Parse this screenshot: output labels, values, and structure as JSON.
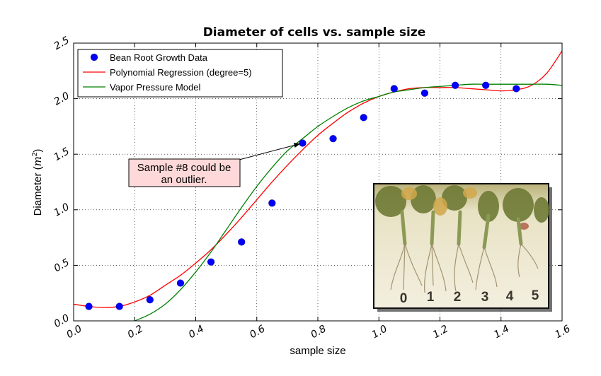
{
  "chart_data": {
    "type": "scatter",
    "title": "Diameter of cells vs. sample size",
    "xlabel": "sample size",
    "ylabel_text": "Diameter (",
    "ylabel_math": "m",
    "ylabel_sup": "2",
    "ylabel_close": ")",
    "xlim": [
      0.0,
      1.6
    ],
    "ylim": [
      0.0,
      2.5
    ],
    "grid": true,
    "legend_position": "top-left",
    "x_ticks": [
      "0.0",
      "0.2",
      "0.4",
      "0.6",
      "0.8",
      "1.0",
      "1.2",
      "1.4",
      "1.6"
    ],
    "y_ticks": [
      "0.0",
      "0.5",
      "1.0",
      "1.5",
      "2.0",
      "2.5"
    ],
    "series": [
      {
        "name": "Bean Root Growth Data",
        "kind": "points",
        "color": "#0000ff",
        "x": [
          0.05,
          0.15,
          0.25,
          0.35,
          0.45,
          0.55,
          0.65,
          0.75,
          0.85,
          0.95,
          1.05,
          1.15,
          1.25,
          1.35,
          1.45
        ],
        "y": [
          0.13,
          0.13,
          0.19,
          0.34,
          0.53,
          0.71,
          1.06,
          1.6,
          1.64,
          1.83,
          2.09,
          2.05,
          2.12,
          2.12,
          2.09
        ]
      },
      {
        "name": "Polynomial Regression (degree=5)",
        "kind": "line",
        "color": "#ff0000",
        "x": [
          0.0,
          0.05,
          0.1,
          0.15,
          0.2,
          0.25,
          0.3,
          0.35,
          0.4,
          0.45,
          0.5,
          0.55,
          0.6,
          0.65,
          0.7,
          0.75,
          0.8,
          0.85,
          0.9,
          0.95,
          1.0,
          1.05,
          1.1,
          1.15,
          1.2,
          1.25,
          1.3,
          1.35,
          1.4,
          1.45,
          1.5,
          1.55,
          1.6
        ],
        "y": [
          0.15,
          0.13,
          0.12,
          0.13,
          0.17,
          0.23,
          0.32,
          0.41,
          0.52,
          0.64,
          0.78,
          0.93,
          1.09,
          1.25,
          1.4,
          1.54,
          1.67,
          1.78,
          1.88,
          1.96,
          2.02,
          2.06,
          2.09,
          2.1,
          2.1,
          2.1,
          2.09,
          2.08,
          2.07,
          2.08,
          2.12,
          2.23,
          2.43
        ]
      },
      {
        "name": "Vapor Pressure Model",
        "kind": "line",
        "color": "#008000",
        "x": [
          0.2,
          0.25,
          0.3,
          0.35,
          0.4,
          0.45,
          0.5,
          0.55,
          0.6,
          0.65,
          0.7,
          0.75,
          0.8,
          0.85,
          0.9,
          0.95,
          1.0,
          1.05,
          1.1,
          1.15,
          1.2,
          1.25,
          1.3,
          1.35,
          1.4,
          1.45,
          1.5,
          1.55,
          1.6
        ],
        "y": [
          0.0,
          0.06,
          0.15,
          0.28,
          0.44,
          0.62,
          0.82,
          1.02,
          1.21,
          1.38,
          1.53,
          1.64,
          1.75,
          1.84,
          1.92,
          1.98,
          2.02,
          2.06,
          2.08,
          2.1,
          2.11,
          2.12,
          2.13,
          2.13,
          2.13,
          2.13,
          2.13,
          2.13,
          2.12
        ]
      }
    ],
    "annotation": {
      "text_line1": "Sample #8 could be",
      "text_line2": "an outlier.",
      "target_x": 0.75,
      "target_y": 1.6,
      "box_color": "#ffd9d9"
    },
    "inset_image": {
      "description_labels": [
        "0",
        "1",
        "2",
        "3",
        "4",
        "5"
      ]
    }
  }
}
